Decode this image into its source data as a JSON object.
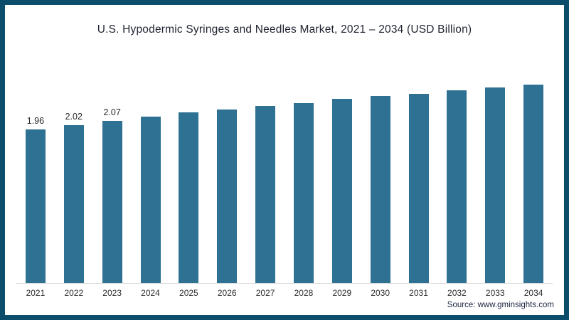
{
  "page": {
    "source": "Source: www.gminsights.com"
  },
  "colors": {
    "bar": "#2e7192",
    "frame_border": "#0c4d6b",
    "title_text": "#1f2430",
    "axis_text": "#2b2b2b"
  },
  "chart_data": {
    "type": "bar",
    "title": "U.S. Hypodermic Syringes and Needles Market, 2021 – 2034 (USD Billion)",
    "categories": [
      "2021",
      "2022",
      "2023",
      "2024",
      "2025",
      "2026",
      "2027",
      "2028",
      "2029",
      "2030",
      "2031",
      "2032",
      "2033",
      "2034"
    ],
    "values": [
      1.96,
      2.02,
      2.07,
      2.13,
      2.18,
      2.22,
      2.26,
      2.3,
      2.35,
      2.39,
      2.42,
      2.46,
      2.5,
      2.54
    ],
    "value_labels_shown": 3,
    "labeled_values": [
      "1.96",
      "2.02",
      "2.07"
    ],
    "xlabel": "",
    "ylabel": "",
    "ylim": [
      0,
      2.8
    ],
    "grid": false,
    "legend": false,
    "y_axis_visible": false
  }
}
